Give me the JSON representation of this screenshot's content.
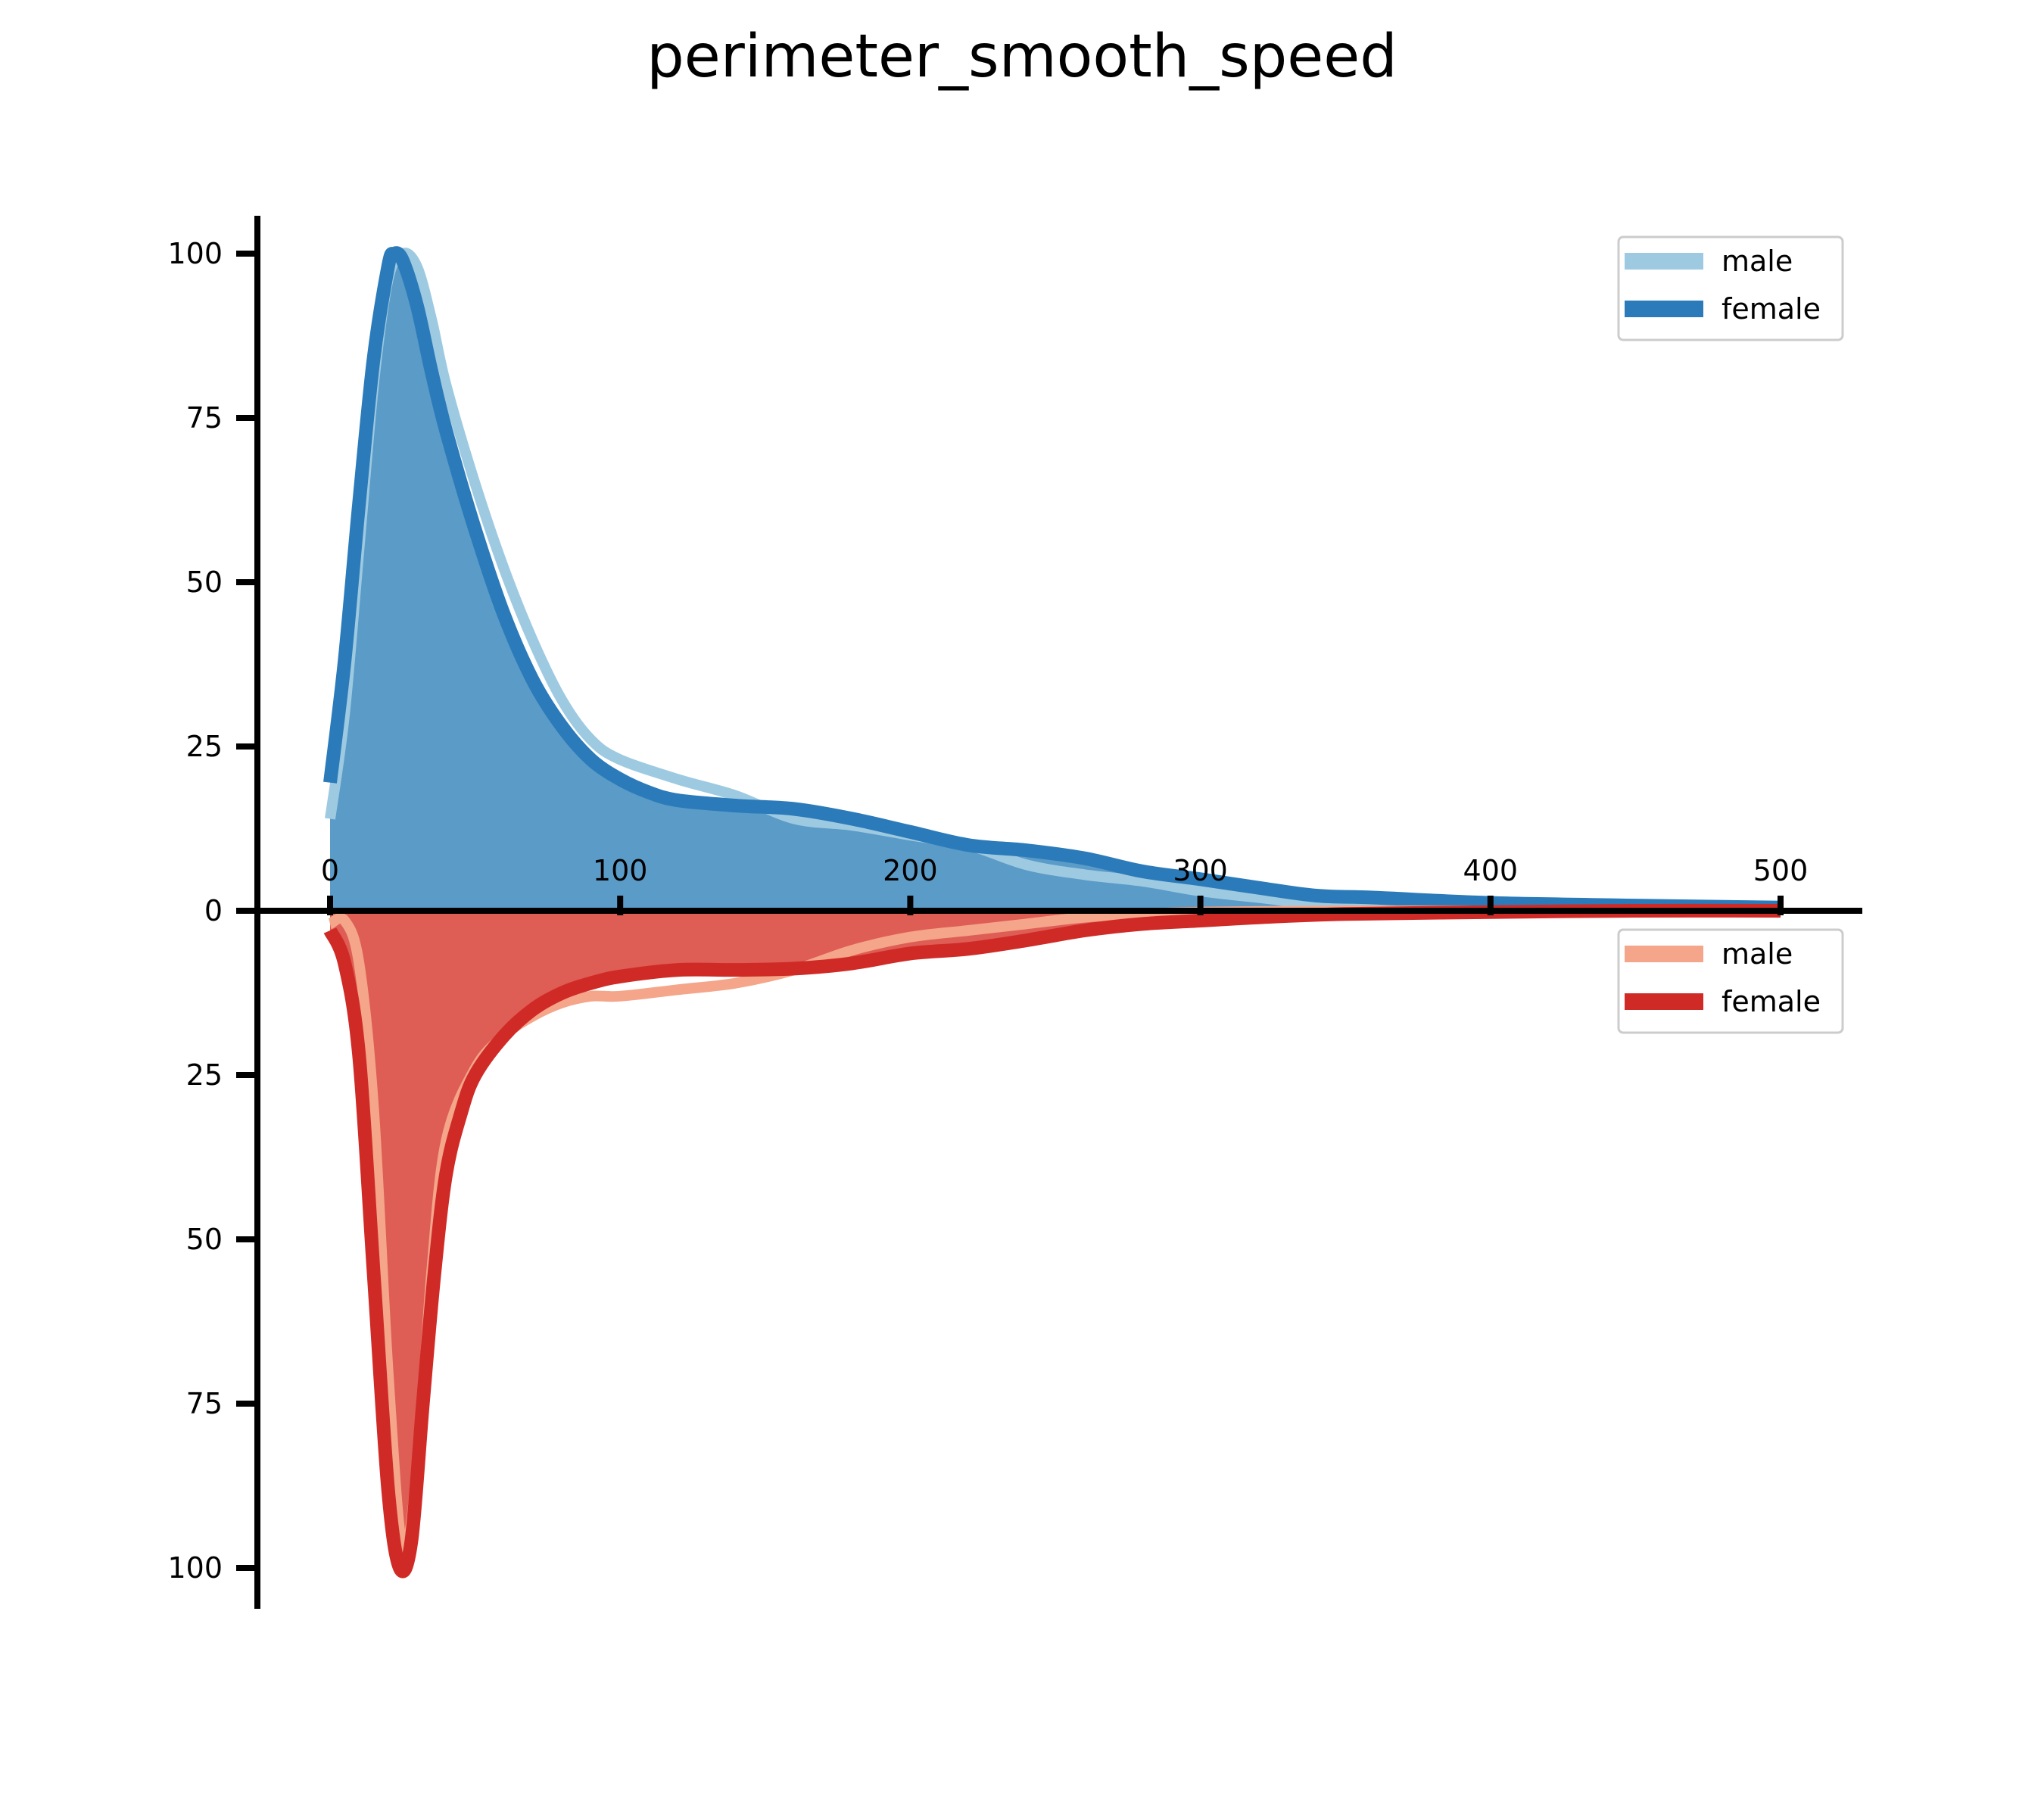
{
  "chart_data": {
    "type": "area",
    "title": "perimeter_smooth_speed",
    "xlabel": "",
    "ylabel": "",
    "xlim": [
      -25,
      525
    ],
    "ylim_top": [
      0,
      105
    ],
    "ylim_bottom": [
      0,
      105
    ],
    "x_ticks": [
      0,
      100,
      200,
      300,
      400,
      500
    ],
    "y_ticks_top": [
      0,
      25,
      50,
      75,
      100
    ],
    "y_ticks_bottom": [
      25,
      50,
      75,
      100
    ],
    "grid": false,
    "legend_top": {
      "position": "top-right",
      "entries": [
        "male",
        "female"
      ]
    },
    "legend_bottom": {
      "position": "upper-right below axis",
      "entries": [
        "male",
        "female"
      ]
    },
    "colors": {
      "top_male": "#9ecae1",
      "top_female": "#2b7bba",
      "top_fill": "#5b9bc8",
      "bottom_male": "#f4a58a",
      "bottom_female": "#d02a26",
      "bottom_fill": "#de5d55"
    },
    "series": [
      {
        "name": "male",
        "panel": "top",
        "points": [
          [
            0,
            14
          ],
          [
            5,
            30
          ],
          [
            10,
            55
          ],
          [
            15,
            80
          ],
          [
            20,
            96
          ],
          [
            25,
            100
          ],
          [
            30,
            98
          ],
          [
            35,
            90
          ],
          [
            40,
            80
          ],
          [
            50,
            65
          ],
          [
            60,
            52
          ],
          [
            70,
            41
          ],
          [
            80,
            32
          ],
          [
            90,
            26
          ],
          [
            100,
            23
          ],
          [
            120,
            20
          ],
          [
            140,
            17.5
          ],
          [
            160,
            14
          ],
          [
            180,
            13
          ],
          [
            200,
            11.5
          ],
          [
            220,
            10
          ],
          [
            240,
            7
          ],
          [
            260,
            5.5
          ],
          [
            280,
            4.5
          ],
          [
            300,
            3
          ],
          [
            320,
            2
          ],
          [
            340,
            1
          ],
          [
            360,
            0.5
          ],
          [
            400,
            0.3
          ],
          [
            450,
            0.2
          ],
          [
            500,
            0
          ]
        ]
      },
      {
        "name": "female",
        "panel": "top",
        "points": [
          [
            0,
            19.5
          ],
          [
            5,
            38
          ],
          [
            10,
            62
          ],
          [
            15,
            84
          ],
          [
            20,
            98
          ],
          [
            22,
            100
          ],
          [
            25,
            99
          ],
          [
            30,
            92
          ],
          [
            35,
            82
          ],
          [
            40,
            73
          ],
          [
            50,
            58
          ],
          [
            60,
            45
          ],
          [
            70,
            35
          ],
          [
            80,
            28
          ],
          [
            90,
            23
          ],
          [
            100,
            20
          ],
          [
            110,
            18
          ],
          [
            120,
            16.8
          ],
          [
            140,
            16
          ],
          [
            160,
            15.5
          ],
          [
            180,
            14
          ],
          [
            200,
            12
          ],
          [
            220,
            10
          ],
          [
            240,
            9.2
          ],
          [
            260,
            8
          ],
          [
            280,
            6
          ],
          [
            300,
            4.8
          ],
          [
            320,
            3.5
          ],
          [
            340,
            2.3
          ],
          [
            360,
            2
          ],
          [
            400,
            1.2
          ],
          [
            450,
            0.8
          ],
          [
            500,
            0.5
          ]
        ]
      },
      {
        "name": "male",
        "panel": "bottom",
        "points": [
          [
            0,
            2
          ],
          [
            5,
            1.5
          ],
          [
            10,
            8
          ],
          [
            15,
            30
          ],
          [
            20,
            70
          ],
          [
            25,
            97
          ],
          [
            30,
            85
          ],
          [
            35,
            55
          ],
          [
            40,
            35
          ],
          [
            50,
            24
          ],
          [
            60,
            19
          ],
          [
            70,
            16
          ],
          [
            80,
            14
          ],
          [
            90,
            13
          ],
          [
            100,
            13
          ],
          [
            120,
            12
          ],
          [
            140,
            11
          ],
          [
            160,
            9
          ],
          [
            180,
            6
          ],
          [
            200,
            4
          ],
          [
            220,
            3
          ],
          [
            240,
            2
          ],
          [
            260,
            1
          ],
          [
            280,
            0.5
          ],
          [
            300,
            0.2
          ],
          [
            350,
            0
          ],
          [
            400,
            0
          ],
          [
            450,
            0
          ],
          [
            500,
            0
          ]
        ]
      },
      {
        "name": "female",
        "panel": "bottom",
        "points": [
          [
            0,
            3
          ],
          [
            5,
            8
          ],
          [
            10,
            22
          ],
          [
            15,
            55
          ],
          [
            20,
            88
          ],
          [
            24,
            100
          ],
          [
            28,
            96
          ],
          [
            32,
            75
          ],
          [
            36,
            55
          ],
          [
            40,
            40
          ],
          [
            45,
            31
          ],
          [
            50,
            25
          ],
          [
            60,
            19
          ],
          [
            70,
            15
          ],
          [
            80,
            12.5
          ],
          [
            90,
            11
          ],
          [
            100,
            10
          ],
          [
            120,
            9
          ],
          [
            140,
            9
          ],
          [
            160,
            8.8
          ],
          [
            180,
            8
          ],
          [
            200,
            6.5
          ],
          [
            220,
            5.8
          ],
          [
            240,
            4.5
          ],
          [
            260,
            3
          ],
          [
            280,
            2
          ],
          [
            300,
            1.5
          ],
          [
            320,
            1
          ],
          [
            350,
            0.5
          ],
          [
            400,
            0.2
          ],
          [
            450,
            0
          ],
          [
            500,
            0
          ]
        ]
      }
    ]
  }
}
